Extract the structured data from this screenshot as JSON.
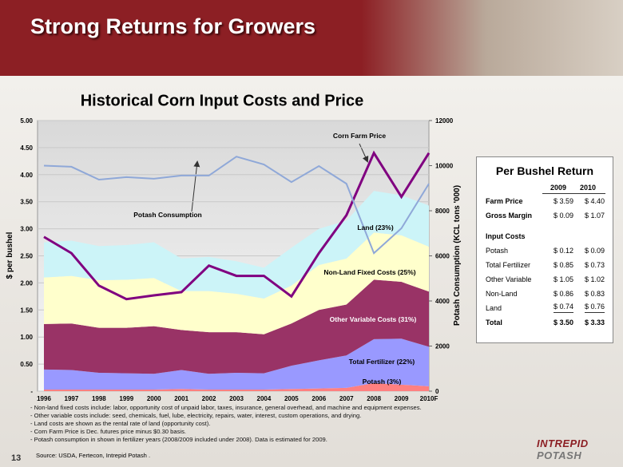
{
  "header": {
    "title": "Strong Returns for Growers"
  },
  "chart_data": {
    "type": "area",
    "title": "Historical Corn Input Costs and Price",
    "ylabel": "$ per bushel",
    "y2label": "Potash Consumption (KCL tons '000)",
    "categories": [
      "1996",
      "1997",
      "1998",
      "1999",
      "2000",
      "2001",
      "2002",
      "2003",
      "2004",
      "2005",
      "2006",
      "2007",
      "2008",
      "2009",
      "2010F"
    ],
    "ylim": [
      0,
      5
    ],
    "yticks": [
      {
        "value": 0,
        "label": "-"
      },
      {
        "value": 0.5,
        "label": "0.50"
      },
      {
        "value": 1,
        "label": "1.00"
      },
      {
        "value": 1.5,
        "label": "1.50"
      },
      {
        "value": 2,
        "label": "2.00"
      },
      {
        "value": 2.5,
        "label": "2.50"
      },
      {
        "value": 3,
        "label": "3.00"
      },
      {
        "value": 3.5,
        "label": "3.50"
      },
      {
        "value": 4,
        "label": "4.00"
      },
      {
        "value": 4.5,
        "label": "4.50"
      },
      {
        "value": 5,
        "label": "5.00"
      }
    ],
    "y2lim": [
      0,
      12000
    ],
    "y2ticks": [
      0,
      2000,
      4000,
      6000,
      8000,
      10000,
      12000
    ],
    "grid": true,
    "stacked": true,
    "series": [
      {
        "name": "Potash (3%)",
        "type": "area",
        "color": "#ff8080",
        "values": [
          0.03,
          0.03,
          0.03,
          0.03,
          0.03,
          0.04,
          0.03,
          0.03,
          0.03,
          0.04,
          0.05,
          0.06,
          0.15,
          0.12,
          0.09
        ]
      },
      {
        "name": "Total Fertilizer (22%)",
        "type": "area",
        "color": "#9999ff",
        "values": [
          0.37,
          0.36,
          0.31,
          0.3,
          0.29,
          0.35,
          0.29,
          0.31,
          0.3,
          0.43,
          0.52,
          0.6,
          0.81,
          0.85,
          0.73
        ]
      },
      {
        "name": "Other Variable Costs (31%)",
        "type": "area",
        "color": "#993366",
        "values": [
          0.84,
          0.86,
          0.83,
          0.84,
          0.88,
          0.74,
          0.77,
          0.75,
          0.72,
          0.78,
          0.93,
          0.94,
          1.1,
          1.05,
          1.02
        ]
      },
      {
        "name": "Non-Land Fixed Costs (25%)",
        "type": "area",
        "color": "#ffffcc",
        "values": [
          0.86,
          0.88,
          0.88,
          0.89,
          0.89,
          0.72,
          0.76,
          0.71,
          0.66,
          0.7,
          0.83,
          0.85,
          0.87,
          0.86,
          0.83
        ]
      },
      {
        "name": "Land (23%)",
        "type": "area",
        "color": "#ccf4f8",
        "values": [
          0.65,
          0.65,
          0.63,
          0.64,
          0.66,
          0.6,
          0.63,
          0.6,
          0.57,
          0.7,
          0.67,
          0.7,
          0.77,
          0.74,
          0.76
        ]
      },
      {
        "name": "Corn Farm Price",
        "type": "line",
        "color": "#800080",
        "values": [
          2.85,
          2.55,
          1.95,
          1.7,
          1.77,
          1.83,
          2.32,
          2.13,
          2.13,
          1.75,
          2.55,
          3.25,
          4.4,
          3.59,
          4.4
        ]
      },
      {
        "name": "Potash Consumption",
        "type": "line",
        "axis": "y2",
        "color": "#8fa8d8",
        "values": [
          10000,
          9950,
          9380,
          9490,
          9420,
          9560,
          9560,
          10400,
          10050,
          9270,
          9980,
          9200,
          6120,
          7220,
          9200
        ]
      }
    ]
  },
  "table": {
    "title": "Per Bushel Return",
    "columns": [
      "2009",
      "2010"
    ],
    "top_rows": [
      {
        "label": "Farm Price",
        "values": [
          "$ 3.59",
          "$ 4.40"
        ]
      },
      {
        "label": "Gross Margin",
        "values": [
          "$ 0.09",
          "$ 1.07"
        ]
      }
    ],
    "section": "Input Costs",
    "rows": [
      {
        "label": "Potash",
        "values": [
          "$ 0.12",
          "$ 0.09"
        ]
      },
      {
        "label": "Total Fertilizer",
        "values": [
          "$ 0.85",
          "$ 0.73"
        ]
      },
      {
        "label": "Other Variable",
        "values": [
          "$ 1.05",
          "$ 1.02"
        ]
      },
      {
        "label": "Non-Land",
        "values": [
          "$ 0.86",
          "$ 0.83"
        ]
      },
      {
        "label": "Land",
        "values": [
          "$ 0.74",
          "$ 0.76"
        ]
      }
    ],
    "total": {
      "label": "Total",
      "values": [
        "$ 3.50",
        "$ 3.33"
      ]
    }
  },
  "notes": [
    "- Non-land fixed costs include: labor, opportunity cost of unpaid labor, taxes, insurance, general overhead, and machine and equipment expenses.",
    "- Other variable costs include: seed, chemicals, fuel, lube, electricity, repairs, water, interest, custom operations, and drying.",
    "- Land costs are shown as the rental rate of land (opportunity cost).",
    "- Corn Farm Price is Dec. futures price minus $0.30 basis.",
    "- Potash consumption in shown in fertilizer years (2008/2009 included under 2008). Data is estimated for 2009."
  ],
  "source": "Source: USDA, Fertecon, Intrepid Potash .",
  "footer": {
    "page": "13",
    "logo_1": "INTREPID",
    "logo_2": "POTASH"
  }
}
